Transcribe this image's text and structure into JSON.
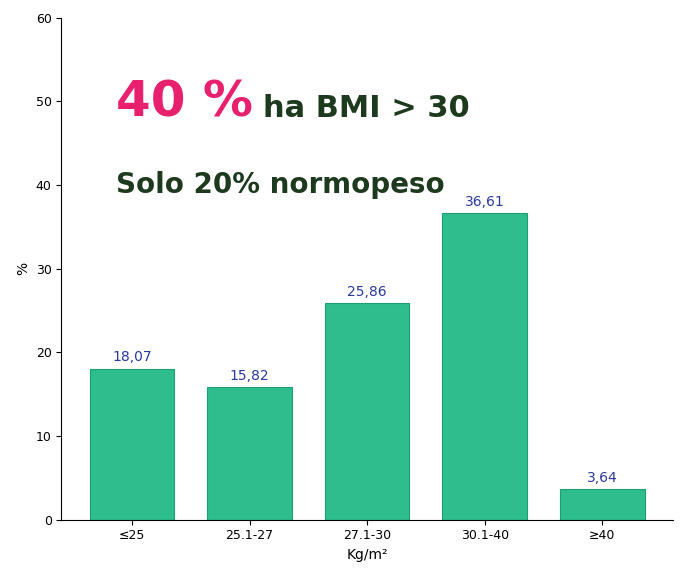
{
  "chart_data": {
    "type": "bar",
    "categories": [
      "≤25",
      "25.1-27",
      "27.1-30",
      "30.1-40",
      "≥40"
    ],
    "values": [
      18.07,
      15.82,
      25.86,
      36.61,
      3.64
    ],
    "value_labels": [
      "18,07",
      "15,82",
      "25,86",
      "36,61",
      "3,64"
    ],
    "data_labels": true,
    "color": "#2ebd8c",
    "x_label": "Kg/m²",
    "y_label": "%",
    "ylim": [
      0,
      60
    ],
    "yticks": [
      0,
      10,
      20,
      30,
      40,
      50,
      60
    ],
    "grid": false,
    "annotations": [
      "40 %",
      "ha BMI > 30",
      "Solo 20% normopeso"
    ]
  }
}
